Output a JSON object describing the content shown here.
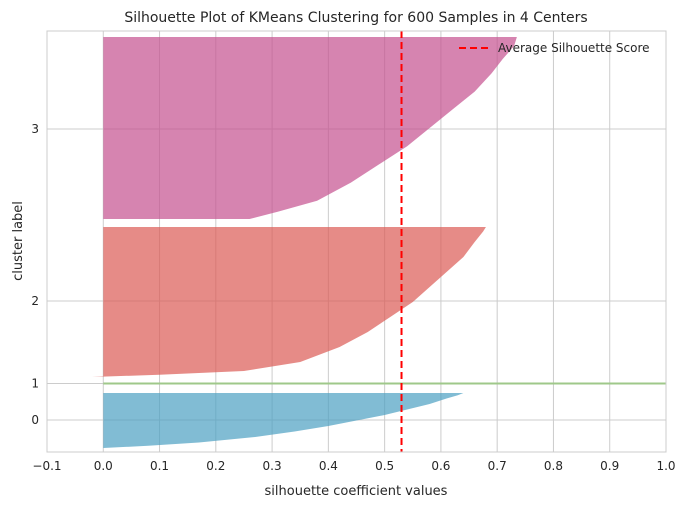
{
  "chart_data": {
    "type": "silhouette",
    "title": "Silhouette Plot of KMeans Clustering for 600 Samples in 4 Centers",
    "xlabel": "silhouette coefficient values",
    "ylabel": "cluster label",
    "xlim": [
      -0.1,
      1.0
    ],
    "xticks": [
      "−0.1",
      "0.0",
      "0.1",
      "0.2",
      "0.3",
      "0.4",
      "0.5",
      "0.6",
      "0.7",
      "0.8",
      "0.9",
      "1.0"
    ],
    "grid": true,
    "legend": {
      "position": "top-right",
      "entries": [
        "Average Silhouette Score"
      ]
    },
    "average_silhouette_score": 0.53,
    "clusters": [
      {
        "label": "0",
        "color": "#4c9fc2",
        "profile": [
          [
            0,
            0.64
          ],
          [
            0.04,
            0.63
          ],
          [
            0.1,
            0.61
          ],
          [
            0.2,
            0.58
          ],
          [
            0.3,
            0.54
          ],
          [
            0.4,
            0.5
          ],
          [
            0.5,
            0.45
          ],
          [
            0.6,
            0.4
          ],
          [
            0.7,
            0.34
          ],
          [
            0.8,
            0.27
          ],
          [
            0.9,
            0.17
          ],
          [
            0.96,
            0.08
          ],
          [
            1,
            0.0
          ]
        ]
      },
      {
        "label": "1",
        "color": "#9fc88a",
        "profile": [
          [
            0,
            1.0
          ],
          [
            1,
            1.0
          ]
        ]
      },
      {
        "label": "2",
        "color": "#dc5a54",
        "profile": [
          [
            0,
            0.68
          ],
          [
            0.03,
            0.675
          ],
          [
            0.1,
            0.66
          ],
          [
            0.2,
            0.64
          ],
          [
            0.3,
            0.61
          ],
          [
            0.4,
            0.58
          ],
          [
            0.5,
            0.55
          ],
          [
            0.6,
            0.51
          ],
          [
            0.7,
            0.47
          ],
          [
            0.8,
            0.42
          ],
          [
            0.9,
            0.35
          ],
          [
            0.96,
            0.25
          ],
          [
            0.985,
            0.1
          ],
          [
            1,
            -0.02
          ]
        ]
      },
      {
        "label": "3",
        "color": "#c4508e",
        "profile": [
          [
            0,
            0.735
          ],
          [
            0.05,
            0.73
          ],
          [
            0.12,
            0.71
          ],
          [
            0.2,
            0.69
          ],
          [
            0.3,
            0.66
          ],
          [
            0.4,
            0.62
          ],
          [
            0.5,
            0.58
          ],
          [
            0.6,
            0.54
          ],
          [
            0.7,
            0.49
          ],
          [
            0.8,
            0.44
          ],
          [
            0.9,
            0.38
          ],
          [
            0.96,
            0.31
          ],
          [
            1,
            0.26
          ]
        ]
      }
    ]
  }
}
